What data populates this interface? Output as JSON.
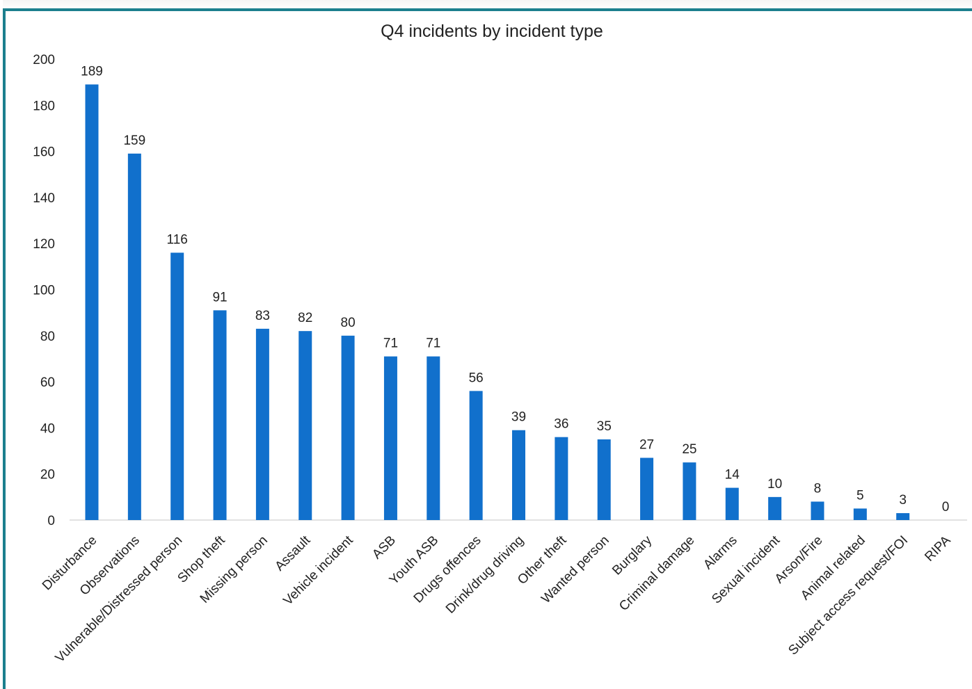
{
  "chart_data": {
    "type": "bar",
    "title": "Q4 incidents by incident type",
    "xlabel": "",
    "ylabel": "",
    "ylim": [
      0,
      200
    ],
    "yticks": [
      "0",
      "20",
      "40",
      "60",
      "80",
      "100",
      "120",
      "140",
      "160",
      "180",
      "200"
    ],
    "grid": false,
    "bar_color": "#1170cc",
    "frame_color": "#1b7f8e",
    "categories": [
      "Disturbance",
      "Observations",
      "Vulnerable/Distressed person",
      "Shop theft",
      "Missing person",
      "Assault",
      "Vehicle incident",
      "ASB",
      "Youth ASB",
      "Drugs offences",
      "Drink/drug driving",
      "Other theft",
      "Wanted person",
      "Burglary",
      "Criminal damage",
      "Alarms",
      "Sexual incident",
      "Arson/Fire",
      "Animal related",
      "Subject access request/FOI",
      "RIPA"
    ],
    "values": [
      189,
      159,
      116,
      91,
      83,
      82,
      80,
      71,
      71,
      56,
      39,
      36,
      35,
      27,
      25,
      14,
      10,
      8,
      5,
      3,
      0
    ]
  }
}
